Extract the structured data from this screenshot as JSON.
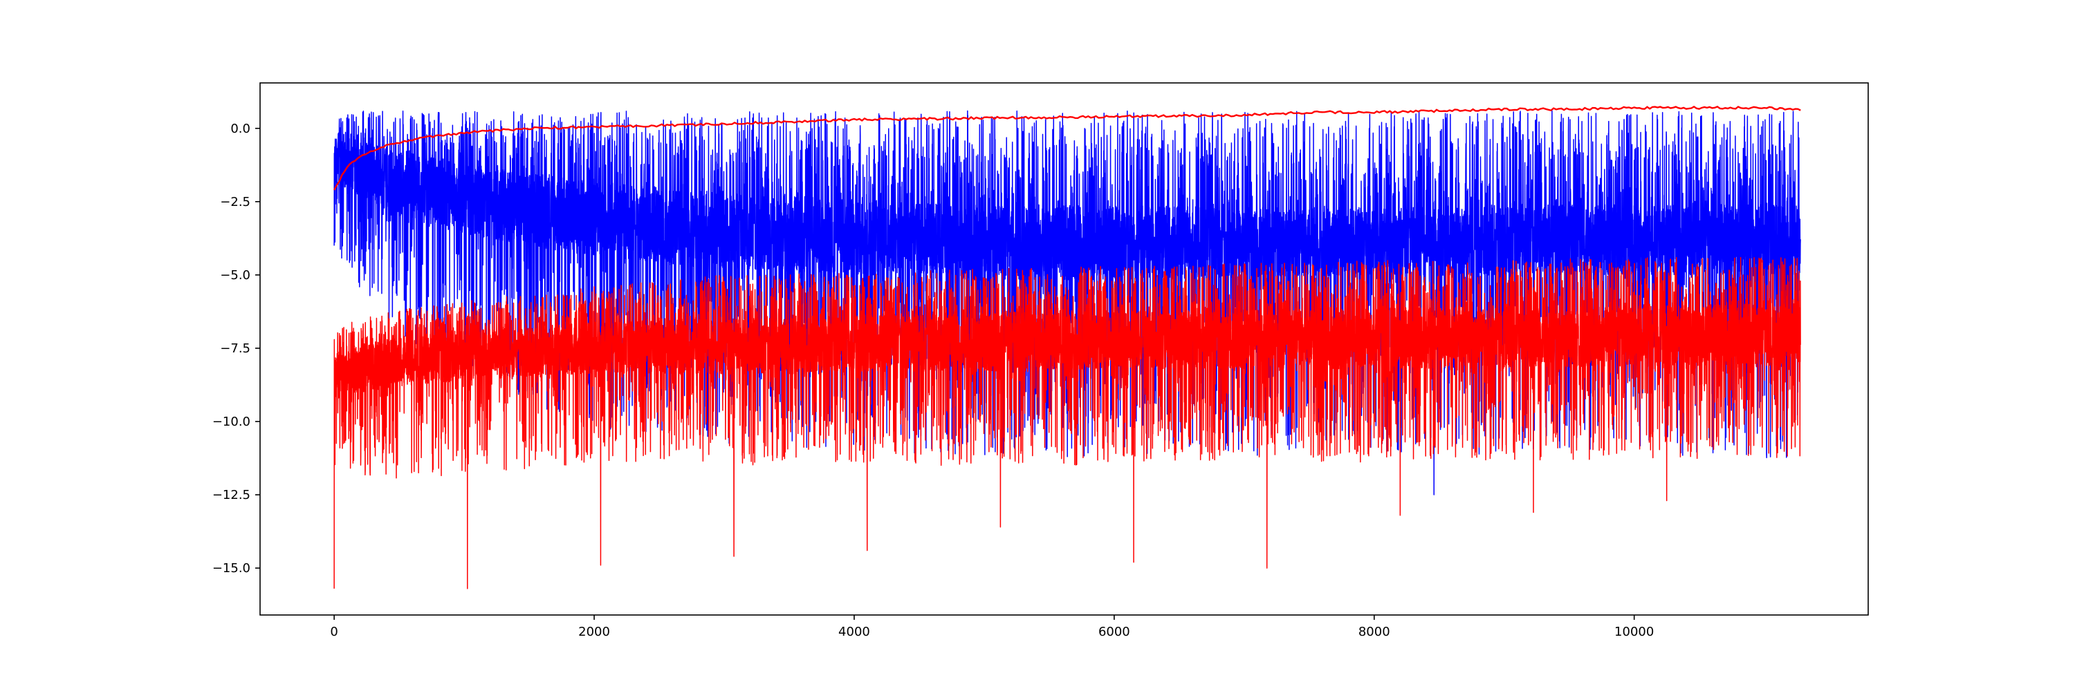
{
  "chart_data": {
    "type": "line",
    "title": "",
    "xlabel": "",
    "ylabel": "",
    "xlim": [
      -570,
      11800
    ],
    "ylim": [
      -16.6,
      1.55
    ],
    "x_ticks": [
      0,
      2000,
      4000,
      6000,
      8000,
      10000
    ],
    "x_tick_labels": [
      "0",
      "2000",
      "4000",
      "6000",
      "8000",
      "10000"
    ],
    "y_ticks": [
      0.0,
      -2.5,
      -5.0,
      -7.5,
      -10.0,
      -12.5,
      -15.0
    ],
    "y_tick_labels": [
      "0.0",
      "−2.5",
      "−5.0",
      "−7.5",
      "−10.0",
      "−12.5",
      "−15.0"
    ],
    "grid": false,
    "legend": null,
    "n_points": 11280,
    "series": [
      {
        "color": "#0000ff",
        "style": "noisy",
        "x": [
          0,
          200,
          500,
          1000,
          2000,
          3000,
          4000,
          5000,
          6000,
          7000,
          8000,
          9000,
          10000,
          11280
        ],
        "upper_envelope": [
          0.6,
          0.6,
          0.6,
          0.6,
          0.6,
          0.6,
          0.6,
          0.6,
          0.6,
          0.6,
          0.6,
          0.6,
          0.6,
          0.6
        ],
        "dense_upper": [
          -0.3,
          -0.4,
          -0.8,
          -1.2,
          -1.8,
          -2.2,
          -2.4,
          -2.6,
          -2.6,
          -2.7,
          -2.7,
          -2.6,
          -2.6,
          -2.6
        ],
        "dense_lower": [
          -1.8,
          -2.3,
          -3.0,
          -3.6,
          -4.4,
          -4.8,
          -5.0,
          -5.2,
          -5.2,
          -5.1,
          -5.0,
          -5.0,
          -5.0,
          -5.0
        ],
        "lower_envelope": [
          -4.0,
          -5.5,
          -7.0,
          -8.5,
          -10.2,
          -10.8,
          -11.0,
          -11.2,
          -11.3,
          -11.2,
          -11.0,
          -11.2,
          -11.2,
          -11.3
        ],
        "extreme_low": [
          -4.0,
          -11.2,
          -12.5
        ]
      },
      {
        "color": "#ff0000",
        "style": "noisy",
        "x": [
          0,
          200,
          500,
          1000,
          2000,
          3000,
          4000,
          5000,
          6000,
          7000,
          8000,
          9000,
          10000,
          11280
        ],
        "upper_envelope": [
          -6.8,
          -6.5,
          -6.2,
          -5.9,
          -5.4,
          -5.0,
          -4.9,
          -4.8,
          -4.7,
          -4.6,
          -4.5,
          -4.5,
          -4.4,
          -4.4
        ],
        "dense_upper": [
          -7.8,
          -7.4,
          -7.1,
          -6.9,
          -6.6,
          -6.5,
          -6.4,
          -6.3,
          -6.2,
          -6.2,
          -6.1,
          -6.1,
          -6.0,
          -6.0
        ],
        "dense_lower": [
          -9.2,
          -9.0,
          -8.8,
          -8.6,
          -8.4,
          -8.4,
          -8.3,
          -8.3,
          -8.2,
          -8.2,
          -8.2,
          -8.2,
          -8.1,
          -8.1
        ],
        "lower_envelope": [
          -11.5,
          -11.8,
          -12.0,
          -11.8,
          -11.5,
          -11.5,
          -11.5,
          -11.5,
          -11.5,
          -11.4,
          -11.4,
          -11.4,
          -11.3,
          -11.3
        ],
        "extreme_low": [
          -15.7,
          -14.9,
          -14.6,
          -14.4,
          -13.6,
          -14.8,
          -15.0,
          -13.2,
          -13.1,
          -12.7
        ]
      },
      {
        "color": "#ff0000",
        "style": "smooth",
        "x": [
          0,
          100,
          200,
          400,
          700,
          1000,
          1500,
          2000,
          2500,
          3000,
          4000,
          5000,
          6000,
          7000,
          7500,
          8000,
          8500,
          9000,
          9500,
          10000,
          10500,
          11000,
          11280
        ],
        "y": [
          -2.1,
          -1.3,
          -0.95,
          -0.6,
          -0.3,
          -0.15,
          0.0,
          0.05,
          0.1,
          0.15,
          0.3,
          0.35,
          0.4,
          0.45,
          0.55,
          0.55,
          0.6,
          0.65,
          0.65,
          0.7,
          0.7,
          0.7,
          0.65
        ]
      }
    ]
  }
}
